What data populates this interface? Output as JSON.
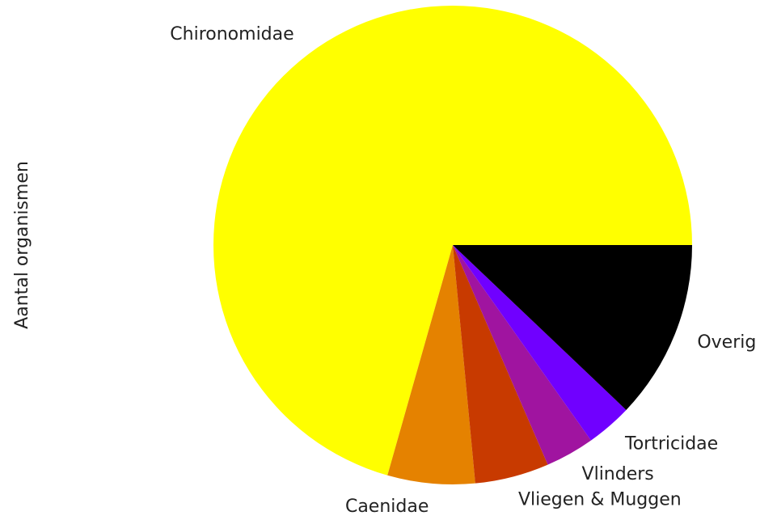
{
  "chart_data": {
    "type": "pie",
    "ylabel": "Aantal organismen",
    "categories": [
      "Chironomidae",
      "Caenidae",
      "Vliegen & Muggen",
      "Vlinders",
      "Tortricidae",
      "Overig"
    ],
    "values": [
      70.6,
      5.9,
      5.0,
      3.3,
      3.1,
      12.1
    ],
    "colors": [
      "#ffff00",
      "#e58200",
      "#c83a00",
      "#a014a0",
      "#7000ff",
      "#000000"
    ],
    "startangle": 0,
    "counterclock": true
  }
}
